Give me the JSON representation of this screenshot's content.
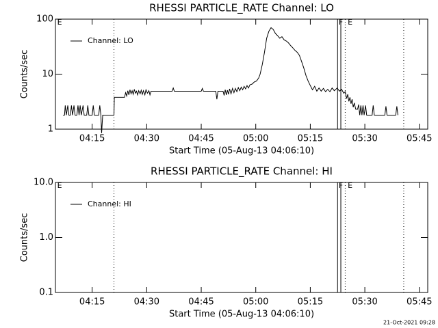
{
  "chart_data": [
    {
      "type": "line",
      "title": "RHESSI PARTICLE_RATE Channel: LO",
      "xlabel": "Start Time (05-Aug-13 04:06:10)",
      "ylabel": "Counts/sec",
      "log_y": true,
      "legend": "upper left",
      "xlim": [
        244.9,
        347.3
      ],
      "ylim": [
        1,
        100
      ],
      "xticks": [
        {
          "value": 255,
          "label": "04:15"
        },
        {
          "value": 270,
          "label": "04:30"
        },
        {
          "value": 285,
          "label": "04:45"
        },
        {
          "value": 300,
          "label": "05:00"
        },
        {
          "value": 315,
          "label": "05:15"
        },
        {
          "value": 330,
          "label": "05:30"
        },
        {
          "value": 345,
          "label": "05:45"
        }
      ],
      "yticks": [
        1,
        10,
        100
      ],
      "markers": [
        {
          "x": 261.0,
          "style": "dotted"
        },
        {
          "x": 322.5,
          "style": "solid"
        },
        {
          "x": 323.4,
          "style": "solid"
        },
        {
          "x": 324.6,
          "style": "dotted"
        },
        {
          "x": 340.7,
          "style": "dotted"
        }
      ],
      "annotations": [
        {
          "text": "E",
          "x": 245.4
        },
        {
          "text": "F",
          "x": 322.8
        },
        {
          "text": "E",
          "x": 325.3
        }
      ],
      "series": [
        {
          "name": "Channel: LO",
          "color": "#000000",
          "x": [
            247.0,
            247.4,
            247.6,
            247.9,
            248.3,
            248.6,
            249.0,
            249.3,
            249.6,
            250.0,
            250.3,
            250.8,
            251.1,
            251.4,
            251.7,
            252.0,
            252.5,
            252.8,
            253.5,
            253.8,
            254.1,
            255.0,
            255.3,
            255.6,
            256.8,
            257.1,
            257.4,
            257.6,
            257.9,
            261.0,
            261.1,
            263.9,
            264.2,
            264.5,
            264.8,
            265.1,
            265.4,
            265.7,
            266.0,
            266.3,
            266.6,
            266.9,
            267.2,
            267.5,
            267.8,
            268.2,
            268.5,
            268.8,
            269.1,
            269.5,
            269.8,
            270.2,
            270.6,
            270.9,
            271.2,
            271.6,
            277.0,
            277.3,
            277.6,
            285.0,
            285.3,
            285.6,
            289.0,
            289.3,
            289.6,
            291.0,
            291.3,
            291.6,
            291.9,
            292.2,
            292.5,
            292.8,
            293.2,
            293.6,
            294.0,
            294.4,
            294.8,
            295.2,
            295.6,
            296.0,
            296.4,
            296.8,
            297.2,
            297.6,
            298.0,
            298.4,
            299.0,
            299.6,
            300.2,
            300.8,
            301.2,
            301.8,
            302.4,
            303.0,
            303.6,
            304.2,
            304.8,
            305.4,
            306.0,
            306.6,
            307.2,
            307.8,
            308.4,
            309.0,
            309.6,
            310.2,
            310.8,
            311.4,
            312.0,
            312.6,
            313.2,
            313.8,
            314.4,
            315.0,
            315.6,
            316.2,
            316.8,
            317.4,
            318.0,
            318.6,
            319.2,
            319.8,
            320.4,
            321.0,
            321.6,
            322.4,
            323.0,
            323.6,
            324.2,
            324.6,
            325.0,
            325.3,
            325.6,
            325.9,
            326.2,
            326.5,
            326.8,
            327.1,
            327.5,
            328.0,
            328.3,
            328.6,
            328.9,
            329.2,
            329.5,
            329.8,
            330.2,
            330.5,
            332.0,
            332.3,
            332.6,
            335.5,
            335.8,
            336.1,
            338.5,
            338.8,
            339.1
          ],
          "values": [
            1.8,
            1.8,
            2.7,
            1.8,
            2.7,
            1.8,
            1.8,
            2.7,
            1.8,
            2.7,
            1.8,
            1.8,
            2.7,
            1.8,
            2.7,
            1.8,
            2.7,
            1.8,
            1.8,
            2.7,
            1.8,
            1.8,
            2.7,
            1.8,
            1.8,
            2.7,
            1.8,
            0.85,
            1.8,
            1.8,
            3.8,
            3.8,
            4.6,
            4.0,
            5.0,
            4.2,
            5.2,
            4.4,
            5.0,
            4.3,
            5.3,
            4.5,
            4.9,
            4.2,
            5.0,
            4.4,
            5.1,
            4.3,
            5.0,
            4.2,
            5.2,
            4.5,
            5.0,
            4.2,
            4.9,
            4.9,
            4.9,
            5.6,
            4.9,
            4.9,
            5.5,
            4.9,
            4.9,
            3.5,
            4.9,
            4.9,
            4.1,
            5.2,
            4.2,
            5.1,
            4.3,
            5.4,
            4.4,
            5.5,
            4.6,
            5.5,
            4.8,
            5.7,
            5.0,
            5.8,
            5.2,
            6.0,
            5.4,
            6.2,
            5.6,
            6.4,
            6.6,
            7.2,
            7.5,
            8.5,
            10,
            15,
            25,
            45,
            60,
            70,
            65,
            55,
            50,
            45,
            48,
            42,
            40,
            37,
            33,
            30,
            27,
            25,
            22,
            17,
            13,
            9.5,
            7.5,
            6.2,
            5.2,
            6.0,
            4.9,
            5.6,
            4.9,
            5.5,
            4.8,
            5.3,
            4.8,
            5.6,
            5.0,
            5.6,
            4.9,
            5.3,
            4.5,
            4.8,
            3.6,
            4.3,
            3.2,
            3.8,
            2.9,
            3.5,
            2.5,
            3.0,
            2.3,
            2.3,
            2.8,
            1.8,
            2.7,
            1.8,
            2.7,
            1.8,
            2.7,
            1.8,
            1.8,
            2.7,
            1.8,
            1.8,
            2.6,
            1.8,
            1.8,
            2.6,
            1.8
          ]
        }
      ]
    },
    {
      "type": "line",
      "title": "RHESSI PARTICLE_RATE Channel: HI",
      "xlabel": "Start Time (05-Aug-13 04:06:10)",
      "ylabel": "Counts/sec",
      "log_y": true,
      "legend": "upper left",
      "xlim": [
        244.9,
        347.3
      ],
      "ylim": [
        0.1,
        10
      ],
      "xticks": [
        {
          "value": 255,
          "label": "04:15"
        },
        {
          "value": 270,
          "label": "04:30"
        },
        {
          "value": 285,
          "label": "04:45"
        },
        {
          "value": 300,
          "label": "05:00"
        },
        {
          "value": 315,
          "label": "05:15"
        },
        {
          "value": 330,
          "label": "05:30"
        },
        {
          "value": 345,
          "label": "05:45"
        }
      ],
      "yticks": [
        0.1,
        {
          "value": 1,
          "label": "1.0"
        },
        {
          "value": 10,
          "label": "10.0"
        }
      ],
      "markers": [
        {
          "x": 261.0,
          "style": "dotted"
        },
        {
          "x": 322.5,
          "style": "solid"
        },
        {
          "x": 323.4,
          "style": "solid"
        },
        {
          "x": 324.6,
          "style": "dotted"
        },
        {
          "x": 340.7,
          "style": "dotted"
        }
      ],
      "annotations": [
        {
          "text": "E",
          "x": 245.4
        },
        {
          "text": "F",
          "x": 322.8
        },
        {
          "text": "E",
          "x": 325.3
        }
      ],
      "series": [
        {
          "name": "Channel: HI",
          "color": "#000000",
          "x": [],
          "values": []
        }
      ]
    }
  ],
  "footer": "21-Oct-2021 09:28"
}
